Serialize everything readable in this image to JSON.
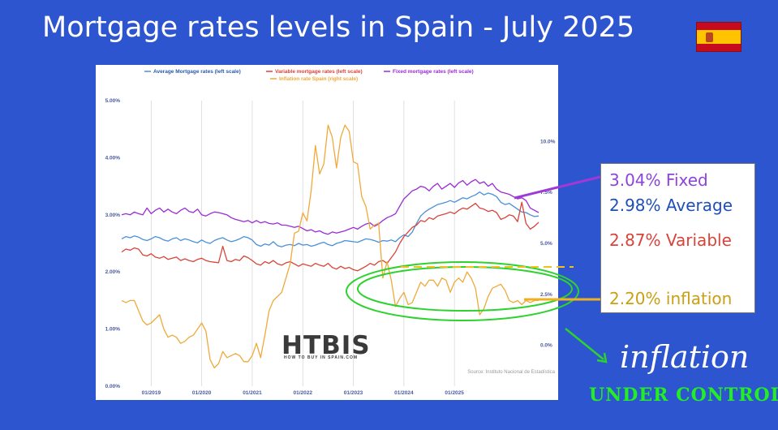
{
  "title": "Mortgage rates levels in Spain - July 2025",
  "callout": {
    "fixed": "3.04% Fixed",
    "average": "2.98% Average",
    "variable": "2.87% Variable",
    "inflation": "2.20% inflation"
  },
  "slogan": {
    "line1": "inflation",
    "line2": "UNDER CONTROL"
  },
  "logo": {
    "name": "HTBIS",
    "tagline": "HOW TO BUY IN SPAIN.COM"
  },
  "colors": {
    "background": "#2d55cf",
    "average": "#4a90d9",
    "variable": "#d9443a",
    "fixed": "#9a2bd6",
    "inflation": "#f0a93a",
    "highlight": "#2ed22e",
    "callout_inflation": "#d4a017"
  },
  "chart_data": {
    "type": "line",
    "source": "Source: Instituto Nacional de Estadística",
    "x_start": "2018-06",
    "x_end": "2025-06",
    "x_ticks": [
      "01/2019",
      "01/2020",
      "01/2021",
      "01/2022",
      "01/2023",
      "01/2024",
      "01/2025"
    ],
    "y_left_ticks": [
      "0.00%",
      "1.00%",
      "2.00%",
      "3.00%",
      "4.00%",
      "5.00%"
    ],
    "y_left_range": [
      0,
      5
    ],
    "y_right_ticks": [
      "0.0%",
      "2.5%",
      "5.0%",
      "7.5%",
      "10.0%"
    ],
    "y_right_range": [
      -2,
      12
    ],
    "grid": "vertical",
    "legend_position": "top",
    "series": [
      {
        "name": "Average Mortgage rates (left scale)",
        "axis": "left",
        "key": "average",
        "values": [
          2.58,
          2.62,
          2.6,
          2.63,
          2.61,
          2.57,
          2.55,
          2.58,
          2.62,
          2.6,
          2.56,
          2.54,
          2.58,
          2.6,
          2.55,
          2.58,
          2.56,
          2.53,
          2.51,
          2.56,
          2.52,
          2.5,
          2.55,
          2.58,
          2.6,
          2.56,
          2.53,
          2.55,
          2.58,
          2.62,
          2.6,
          2.56,
          2.48,
          2.45,
          2.49,
          2.47,
          2.53,
          2.46,
          2.44,
          2.47,
          2.48,
          2.46,
          2.5,
          2.47,
          2.48,
          2.45,
          2.47,
          2.5,
          2.52,
          2.48,
          2.46,
          2.5,
          2.52,
          2.55,
          2.54,
          2.53,
          2.52,
          2.55,
          2.58,
          2.57,
          2.55,
          2.52,
          2.55,
          2.54,
          2.56,
          2.53,
          2.6,
          2.65,
          2.62,
          2.7,
          2.85,
          2.98,
          3.05,
          3.1,
          3.14,
          3.18,
          3.2,
          3.22,
          3.25,
          3.22,
          3.26,
          3.3,
          3.28,
          3.32,
          3.35,
          3.4,
          3.35,
          3.38,
          3.36,
          3.32,
          3.22,
          3.18,
          3.2,
          3.15,
          3.1,
          3.05,
          3.04,
          3.0,
          2.97,
          2.98
        ]
      },
      {
        "name": "Variable mortgage rates (left scale)",
        "axis": "left",
        "key": "variable",
        "values": [
          2.35,
          2.4,
          2.38,
          2.42,
          2.4,
          2.3,
          2.28,
          2.32,
          2.26,
          2.24,
          2.27,
          2.22,
          2.24,
          2.26,
          2.2,
          2.23,
          2.2,
          2.18,
          2.22,
          2.24,
          2.2,
          2.18,
          2.17,
          2.16,
          2.45,
          2.2,
          2.18,
          2.22,
          2.2,
          2.28,
          2.25,
          2.2,
          2.14,
          2.12,
          2.18,
          2.15,
          2.2,
          2.14,
          2.12,
          2.16,
          2.18,
          2.14,
          2.1,
          2.14,
          2.12,
          2.1,
          2.15,
          2.12,
          2.1,
          2.15,
          2.08,
          2.05,
          2.1,
          2.06,
          2.08,
          2.04,
          2.02,
          2.06,
          2.1,
          2.15,
          2.12,
          2.18,
          2.2,
          2.15,
          2.25,
          2.35,
          2.5,
          2.62,
          2.7,
          2.78,
          2.82,
          2.9,
          2.88,
          2.95,
          2.92,
          2.98,
          3.0,
          3.02,
          3.05,
          3.02,
          3.08,
          3.12,
          3.1,
          3.15,
          3.2,
          3.12,
          3.1,
          3.06,
          3.08,
          3.04,
          2.92,
          2.95,
          3.0,
          2.98,
          2.88,
          3.22,
          2.85,
          2.75,
          2.8,
          2.87
        ]
      },
      {
        "name": "Fixed mortgage rates (left scale)",
        "axis": "left",
        "key": "fixed",
        "values": [
          3.0,
          3.02,
          3.0,
          3.05,
          3.02,
          3.0,
          3.12,
          3.02,
          3.08,
          3.12,
          3.05,
          3.1,
          3.05,
          3.02,
          3.08,
          3.12,
          3.06,
          3.04,
          3.1,
          3.0,
          2.98,
          3.02,
          3.05,
          3.04,
          3.02,
          3.0,
          2.95,
          2.92,
          2.9,
          2.88,
          2.9,
          2.86,
          2.9,
          2.86,
          2.88,
          2.85,
          2.84,
          2.86,
          2.82,
          2.82,
          2.8,
          2.78,
          2.8,
          2.76,
          2.72,
          2.74,
          2.7,
          2.72,
          2.68,
          2.66,
          2.7,
          2.68,
          2.7,
          2.72,
          2.75,
          2.78,
          2.75,
          2.8,
          2.84,
          2.86,
          2.8,
          2.84,
          2.9,
          2.95,
          2.98,
          3.02,
          3.15,
          3.28,
          3.35,
          3.42,
          3.45,
          3.5,
          3.48,
          3.42,
          3.5,
          3.55,
          3.45,
          3.5,
          3.55,
          3.48,
          3.56,
          3.6,
          3.52,
          3.58,
          3.62,
          3.55,
          3.58,
          3.5,
          3.55,
          3.45,
          3.4,
          3.38,
          3.36,
          3.32,
          3.28,
          3.3,
          3.25,
          3.12,
          3.08,
          3.04
        ]
      },
      {
        "name": "Inflation rate Spain (right scale)",
        "axis": "right",
        "key": "inflation",
        "values": [
          2.2,
          2.1,
          2.2,
          2.2,
          1.7,
          1.2,
          1.0,
          1.1,
          1.3,
          1.5,
          0.8,
          0.4,
          0.5,
          0.4,
          0.1,
          0.2,
          0.4,
          0.5,
          0.8,
          1.1,
          0.7,
          -0.7,
          -1.1,
          -0.9,
          -0.3,
          -0.6,
          -0.5,
          -0.4,
          -0.5,
          -0.8,
          -0.8,
          -0.5,
          0.1,
          -0.6,
          0.5,
          1.7,
          2.2,
          2.4,
          2.6,
          3.3,
          4.0,
          5.5,
          5.6,
          6.5,
          6.1,
          7.6,
          9.8,
          8.4,
          8.9,
          10.8,
          10.2,
          8.7,
          10.2,
          10.8,
          10.5,
          9.0,
          8.9,
          7.3,
          6.8,
          5.7,
          5.9,
          6.0,
          3.3,
          4.1,
          3.2,
          1.9,
          2.3,
          2.6,
          2.0,
          2.1,
          2.6,
          3.1,
          2.9,
          3.2,
          3.2,
          2.9,
          3.3,
          3.2,
          2.6,
          3.1,
          3.3,
          3.1,
          3.6,
          3.3,
          2.8,
          1.5,
          1.8,
          2.4,
          2.8,
          2.9,
          3.0,
          2.7,
          2.2,
          2.1,
          2.2,
          2.0,
          2.2,
          2.1,
          2.2,
          2.2
        ]
      }
    ]
  }
}
